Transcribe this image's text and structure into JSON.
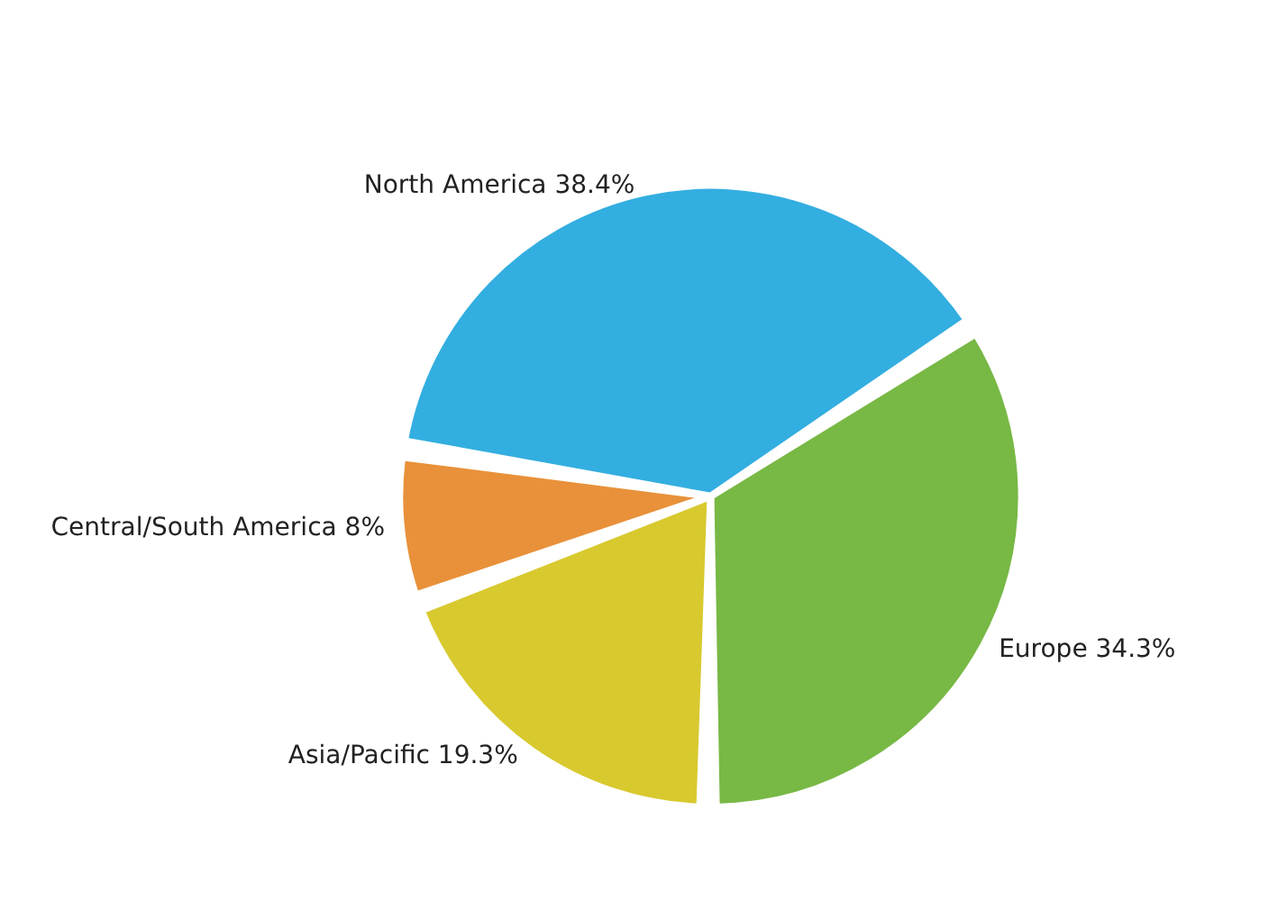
{
  "chart_data": {
    "type": "pie",
    "categories": [
      "Europe",
      "Asia/Pacific",
      "Central/South America",
      "North America"
    ],
    "values": [
      34.3,
      19.3,
      8,
      38.4
    ],
    "value_labels": [
      "34.3%",
      "19.3%",
      "8%",
      "38.4%"
    ],
    "colors": [
      "#78b845",
      "#d8c92f",
      "#e8913a",
      "#33aee0"
    ],
    "legend": false
  }
}
